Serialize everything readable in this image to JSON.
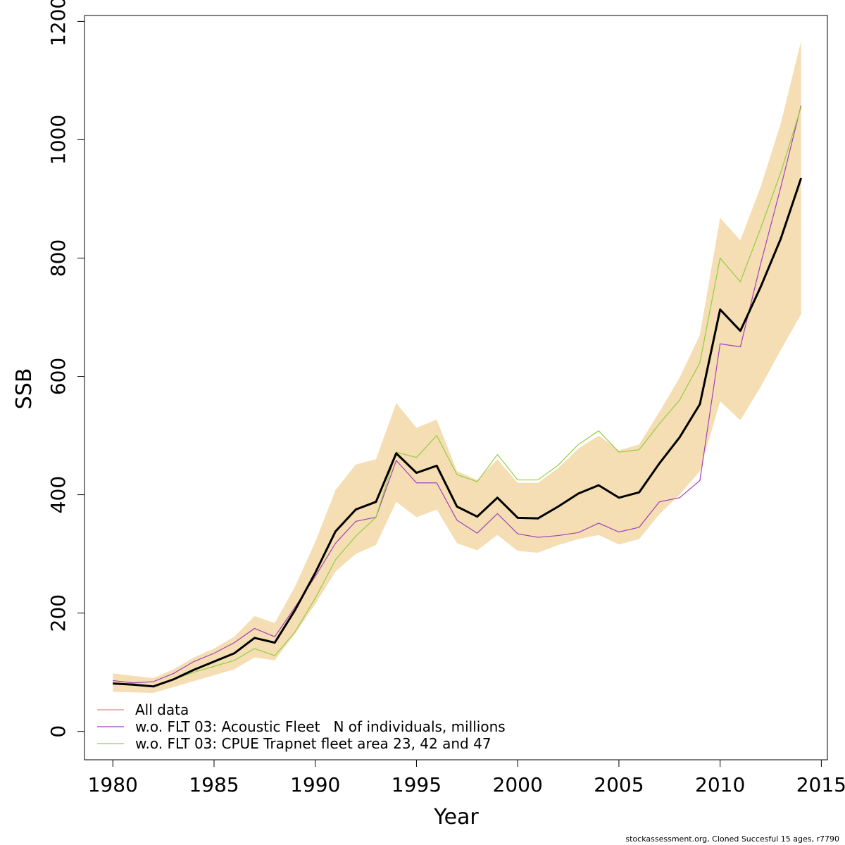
{
  "chart_data": {
    "type": "line",
    "title": "",
    "xlabel": "Year",
    "ylabel": "SSB",
    "xlim": [
      1978.6,
      2015.3
    ],
    "ylim": [
      -48,
      1210
    ],
    "x_ticks": [
      1980,
      1985,
      1990,
      1995,
      2000,
      2005,
      2010,
      2015
    ],
    "y_ticks": [
      0,
      200,
      400,
      600,
      800,
      1000,
      1200
    ],
    "grid": false,
    "legend_position": "bottom-left",
    "x": [
      1980,
      1981,
      1982,
      1983,
      1984,
      1985,
      1986,
      1987,
      1988,
      1989,
      1990,
      1991,
      1992,
      1993,
      1994,
      1995,
      1996,
      1997,
      1998,
      1999,
      2000,
      2001,
      2002,
      2003,
      2004,
      2005,
      2006,
      2007,
      2008,
      2009,
      2010,
      2011,
      2012,
      2013,
      2014
    ],
    "confidence_band": {
      "color": "#f5deb3",
      "lower": [
        67,
        66,
        65,
        75,
        85,
        95,
        105,
        125,
        120,
        165,
        215,
        270,
        300,
        315,
        388,
        362,
        375,
        318,
        306,
        332,
        305,
        302,
        315,
        325,
        332,
        316,
        325,
        367,
        400,
        440,
        558,
        526,
        582,
        645,
        705
      ],
      "upper": [
        98,
        94,
        90,
        105,
        125,
        140,
        160,
        195,
        183,
        245,
        320,
        408,
        451,
        460,
        555,
        513,
        527,
        440,
        425,
        460,
        420,
        420,
        445,
        478,
        500,
        475,
        485,
        540,
        598,
        670,
        868,
        830,
        920,
        1028,
        1167
      ]
    },
    "series": [
      {
        "name": "All data",
        "color": "#e08a8a",
        "width": 1.2,
        "values": [
          81,
          79,
          76,
          88,
          104,
          118,
          132,
          158,
          150,
          205,
          268,
          338,
          375,
          388,
          470,
          437,
          449,
          380,
          363,
          395,
          361,
          360,
          380,
          402,
          416,
          395,
          404,
          453,
          497,
          553,
          713,
          677,
          751,
          833,
          935
        ]
      },
      {
        "name": "w.o. FLT 03: Acoustic Fleet   N of individuals, millions",
        "color": "#a040b8",
        "width": 1.2,
        "values": [
          86,
          82,
          84,
          98,
          118,
          132,
          150,
          174,
          160,
          210,
          262,
          318,
          355,
          362,
          458,
          420,
          420,
          357,
          335,
          368,
          334,
          328,
          331,
          336,
          352,
          337,
          345,
          388,
          395,
          424,
          655,
          650,
          790,
          920,
          1058
        ]
      },
      {
        "name": "w.o. FLT 03: CPUE Trapnet fleet area 23, 42 and 47",
        "color": "#8fcf3f",
        "width": 1.2,
        "values": [
          80,
          78,
          76,
          88,
          100,
          110,
          120,
          140,
          128,
          168,
          225,
          290,
          330,
          362,
          472,
          463,
          500,
          434,
          422,
          468,
          425,
          425,
          450,
          485,
          508,
          472,
          476,
          520,
          560,
          623,
          800,
          760,
          850,
          945,
          1055
        ]
      }
    ],
    "main_line": {
      "color": "#000000",
      "width": 3,
      "values": [
        81,
        79,
        76,
        88,
        104,
        118,
        132,
        158,
        150,
        205,
        268,
        338,
        375,
        388,
        470,
        437,
        449,
        380,
        363,
        395,
        361,
        360,
        380,
        402,
        416,
        395,
        404,
        453,
        497,
        553,
        713,
        677,
        751,
        833,
        935
      ]
    }
  },
  "legend": {
    "items": [
      {
        "label": "All data",
        "color": "#e08a8a"
      },
      {
        "label": "w.o. FLT 03: Acoustic Fleet   N of individuals, millions",
        "color": "#a040b8"
      },
      {
        "label": "w.o. FLT 03: CPUE Trapnet fleet area 23, 42 and 47",
        "color": "#8fcf3f"
      }
    ]
  },
  "footer": {
    "text": "stockassessment.org, Cloned  Succesful  15  ages, r7790"
  }
}
